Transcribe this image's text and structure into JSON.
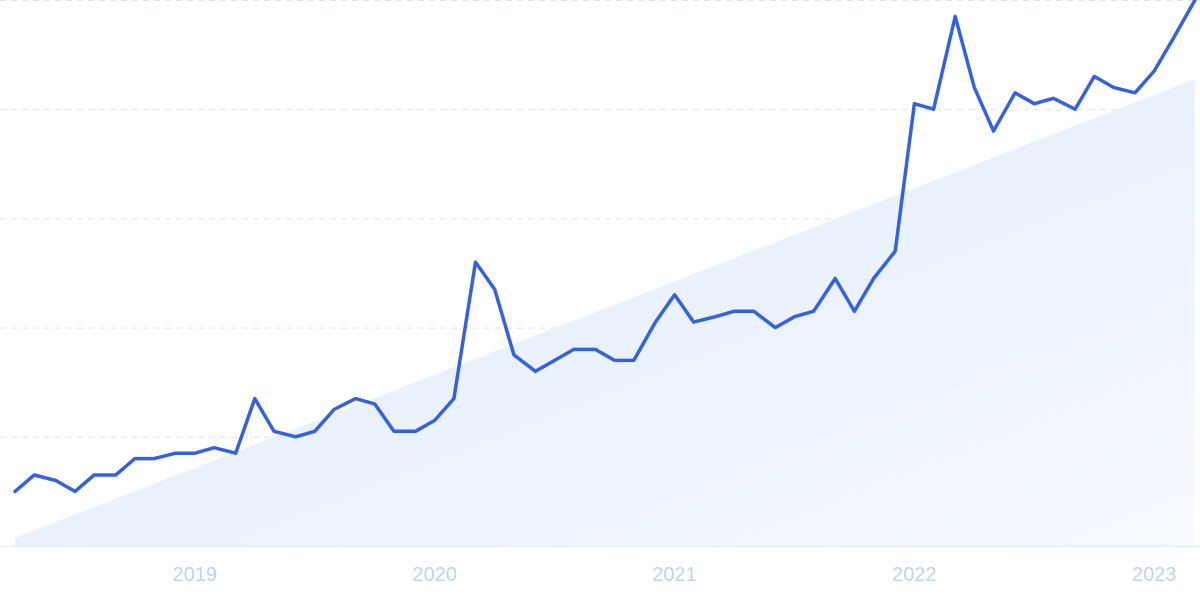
{
  "chart_data": {
    "type": "line",
    "title": "",
    "xlabel": "",
    "ylabel": "",
    "x_ticks": [
      {
        "label": "2019",
        "x": 2019.0
      },
      {
        "label": "2020",
        "x": 2020.0
      },
      {
        "label": "2021",
        "x": 2021.0
      },
      {
        "label": "2022",
        "x": 2022.0
      },
      {
        "label": "2023",
        "x": 2023.0
      }
    ],
    "xlim": [
      2018.25,
      2023.17
    ],
    "ylim": [
      0,
      100
    ],
    "y_gridlines": [
      20,
      40,
      60,
      80,
      100
    ],
    "grid": "horizontal dashed",
    "y_tick_labels_shown": false,
    "trend_area": {
      "start": 1.5,
      "end": 85.5
    },
    "series": [
      {
        "color": "#3461e0",
        "points": [
          [
            2018.25,
            10
          ],
          [
            2018.33,
            13
          ],
          [
            2018.42,
            12
          ],
          [
            2018.5,
            10
          ],
          [
            2018.58,
            13
          ],
          [
            2018.67,
            13
          ],
          [
            2018.75,
            16
          ],
          [
            2018.83,
            16
          ],
          [
            2018.92,
            17
          ],
          [
            2019.0,
            17
          ],
          [
            2019.08,
            18
          ],
          [
            2019.17,
            17
          ],
          [
            2019.25,
            27
          ],
          [
            2019.33,
            21
          ],
          [
            2019.42,
            20
          ],
          [
            2019.5,
            21
          ],
          [
            2019.58,
            25
          ],
          [
            2019.67,
            27
          ],
          [
            2019.75,
            26
          ],
          [
            2019.83,
            21
          ],
          [
            2019.92,
            21
          ],
          [
            2020.0,
            23
          ],
          [
            2020.08,
            27
          ],
          [
            2020.17,
            52
          ],
          [
            2020.25,
            47
          ],
          [
            2020.33,
            35
          ],
          [
            2020.42,
            32
          ],
          [
            2020.5,
            34
          ],
          [
            2020.58,
            36
          ],
          [
            2020.67,
            36
          ],
          [
            2020.75,
            34
          ],
          [
            2020.83,
            34
          ],
          [
            2020.92,
            41
          ],
          [
            2021.0,
            46
          ],
          [
            2021.08,
            41
          ],
          [
            2021.17,
            42
          ],
          [
            2021.25,
            43
          ],
          [
            2021.33,
            43
          ],
          [
            2021.42,
            40
          ],
          [
            2021.5,
            42
          ],
          [
            2021.58,
            43
          ],
          [
            2021.67,
            49
          ],
          [
            2021.75,
            43
          ],
          [
            2021.83,
            49
          ],
          [
            2021.92,
            54
          ],
          [
            2022.0,
            81
          ],
          [
            2022.08,
            80
          ],
          [
            2022.17,
            97
          ],
          [
            2022.25,
            84
          ],
          [
            2022.33,
            76
          ],
          [
            2022.42,
            83
          ],
          [
            2022.5,
            81
          ],
          [
            2022.58,
            82
          ],
          [
            2022.67,
            80
          ],
          [
            2022.75,
            86
          ],
          [
            2022.83,
            84
          ],
          [
            2022.92,
            83
          ],
          [
            2023.0,
            87
          ],
          [
            2023.08,
            93
          ],
          [
            2023.17,
            100
          ]
        ]
      }
    ]
  }
}
